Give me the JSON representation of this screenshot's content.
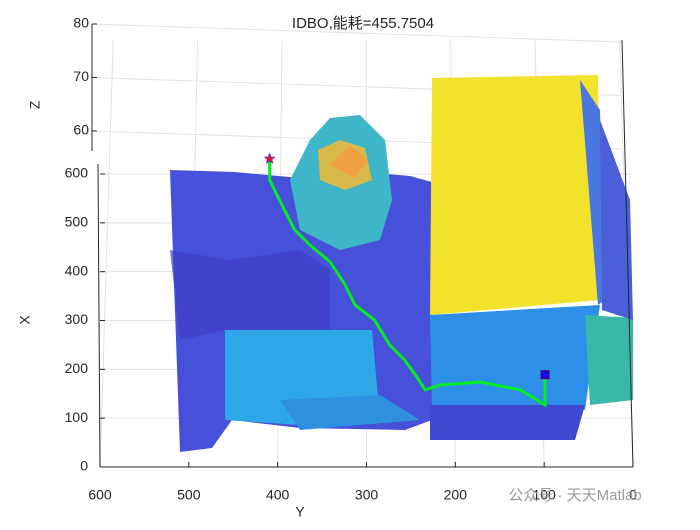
{
  "chart_data": {
    "type": "line3d",
    "title": "IDBO,能耗=455.7504",
    "xlabel": "Y",
    "ylabel": "X",
    "zlabel": "Z",
    "xlim": [
      600,
      0
    ],
    "xticks": [
      600,
      500,
      400,
      300,
      200,
      100,
      0
    ],
    "ylim": [
      0,
      600
    ],
    "yticks": [
      0,
      100,
      200,
      300,
      400,
      500,
      600
    ],
    "zlim": [
      60,
      80
    ],
    "zticks": [
      60,
      70,
      80
    ],
    "grid": true,
    "series": [
      {
        "color": "#00ee22",
        "x": [
          409,
          409,
          398,
          381,
          364,
          341,
          324,
          313,
          291,
          274,
          257,
          245,
          234,
          217,
          172,
          127,
          99,
          99
        ],
        "values": [
          631,
          588,
          547,
          486,
          455,
          420,
          373,
          332,
          301,
          250,
          219,
          189,
          158,
          168,
          174,
          158,
          127,
          189
        ]
      }
    ],
    "start_marker_color": "#e41a1c",
    "end_marker_color": "#1010ee",
    "watermark": "公众号 · 天天Matlab"
  }
}
